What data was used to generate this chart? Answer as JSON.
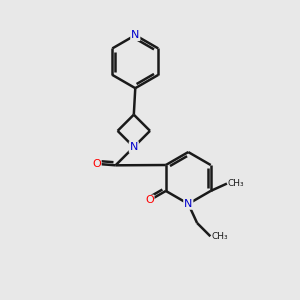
{
  "background_color": "#e8e8e8",
  "bond_color": "#1a1a1a",
  "atom_colors": {
    "N": "#0000cc",
    "O": "#ff0000",
    "C": "#1a1a1a"
  },
  "line_width": 1.8,
  "figsize": [
    3.0,
    3.0
  ],
  "dpi": 100
}
